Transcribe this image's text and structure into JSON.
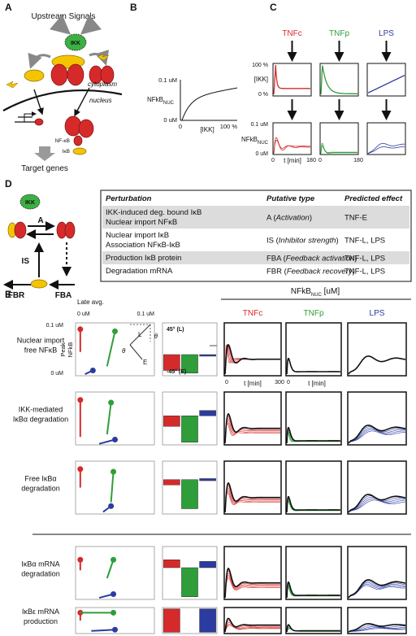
{
  "panel_a": {
    "label": "A",
    "title": "Upstream Signals",
    "ikk": "IKK",
    "cytoplasm": "cytoplasm",
    "nucleus": "nucleus",
    "legend": [
      "NF-κB",
      "IκB"
    ],
    "target": "Target genes"
  },
  "panel_b": {
    "label": "B",
    "y_top": "0.1 uM",
    "y_bottom": "0 uM",
    "y_label": "NFkB",
    "y_label_sub": "NUC",
    "x_left": "0",
    "x_label": "[IKK]",
    "x_right": "100 %"
  },
  "panel_c": {
    "label": "C",
    "stimuli": [
      "TNFc",
      "TNFp",
      "LPS"
    ],
    "colors": [
      "#d62a2a",
      "#2f9e3a",
      "#2b3ba0"
    ],
    "ikk_axis": {
      "top": "100 %",
      "label": "[IKK]",
      "bottom": "0 %"
    },
    "nfkb_axis": {
      "top": "0.1 uM",
      "label": "NFkB",
      "label_sub": "NUC",
      "bottom": "0 uM"
    },
    "time_axis": {
      "start": "0",
      "label": "t [min]",
      "end": "180"
    }
  },
  "panel_d": {
    "label": "D",
    "ikk": "IKK",
    "arrows": {
      "a": "A",
      "is": "IS",
      "fbr": "FBR",
      "fba": "FBA"
    },
    "table": {
      "header": [
        "Perturbation",
        "Putative type",
        "Predicted effect"
      ],
      "rows": [
        {
          "perturbation": [
            "IKK-induced deg. bound IκB",
            "Nuclear import NFκB"
          ],
          "type": [
            "A (",
            "Activation",
            ")"
          ],
          "effect": "TNF-E"
        },
        {
          "perturbation": [
            "Nuclear import IκB",
            "Association NFκB-IκB"
          ],
          "type": [
            "IS (",
            "Inhibitor strength",
            ")"
          ],
          "effect": "TNF-L, LPS"
        },
        {
          "perturbation": [
            "Production IκB protein"
          ],
          "type": [
            "FBA (",
            "Feedback activation",
            ")"
          ],
          "effect": "TNF-L, LPS"
        },
        {
          "perturbation": [
            "Degradation mRNA"
          ],
          "type": [
            "FBR (",
            "Feedback recovery",
            ")"
          ],
          "effect": "TNF-L, LPS"
        }
      ]
    }
  },
  "panel_e": {
    "label": "E",
    "title": "NFkB",
    "title_sub": "NUC",
    "title_unit": " [uM]",
    "late_avg": "Late avg.",
    "x_min": "0 uM",
    "x_max": "0.1 uM",
    "peak_label": [
      "Peak",
      "NFkB"
    ],
    "y_max": "0.1 uM",
    "y_min": "0 uM",
    "angle_l": "L",
    "angle_e": "E",
    "theta": "θ",
    "bar_top": "45° (L)",
    "bar_bottom": "-45° (E)",
    "stimuli": [
      "TNFc",
      "TNFp",
      "LPS"
    ],
    "time_axis": {
      "start": "0",
      "label": "t [min]",
      "end": "300"
    },
    "rows": [
      [
        "Nuclear import",
        "free NFκB"
      ],
      [
        "IKK-mediated",
        "IκBα degradation"
      ],
      [
        "Free IκBα",
        "degradation"
      ],
      [
        "IκBα mRNA",
        "degradation"
      ],
      [
        "IκBε mRNA",
        "production"
      ]
    ]
  }
}
